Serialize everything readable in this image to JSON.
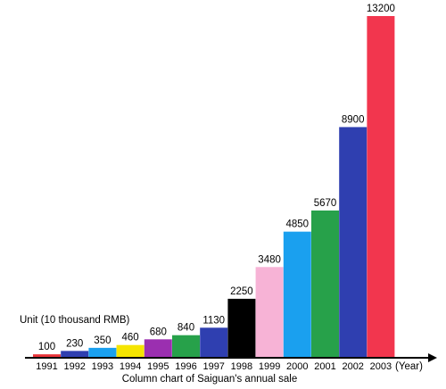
{
  "chart_data": {
    "type": "bar",
    "title": "Column chart of Saiguan's annual sale",
    "unit_label": "Unit (10 thousand RMB)",
    "xlabel": "(Year)",
    "ylabel": "",
    "categories": [
      "1991",
      "1992",
      "1993",
      "1994",
      "1995",
      "1996",
      "1997",
      "1998",
      "1999",
      "2000",
      "2001",
      "2002",
      "2003"
    ],
    "values": [
      100,
      230,
      350,
      460,
      680,
      840,
      1130,
      2250,
      3480,
      4850,
      5670,
      8900,
      13200
    ],
    "value_labels": [
      "100",
      "230",
      "350",
      "460",
      "680",
      "840",
      "1130",
      "2250",
      "3480",
      "4850",
      "5670",
      "8900",
      "13200"
    ],
    "colors": [
      "#e8343a",
      "#2f3fb0",
      "#1aa0ef",
      "#f5e500",
      "#9b2fb0",
      "#27a14a",
      "#2f3fb0",
      "#000000",
      "#f7b3d6",
      "#1aa0ef",
      "#27a14a",
      "#2f3fb0",
      "#f2364e"
    ],
    "ylim": [
      0,
      13200
    ],
    "grid": false,
    "legend": "none"
  }
}
